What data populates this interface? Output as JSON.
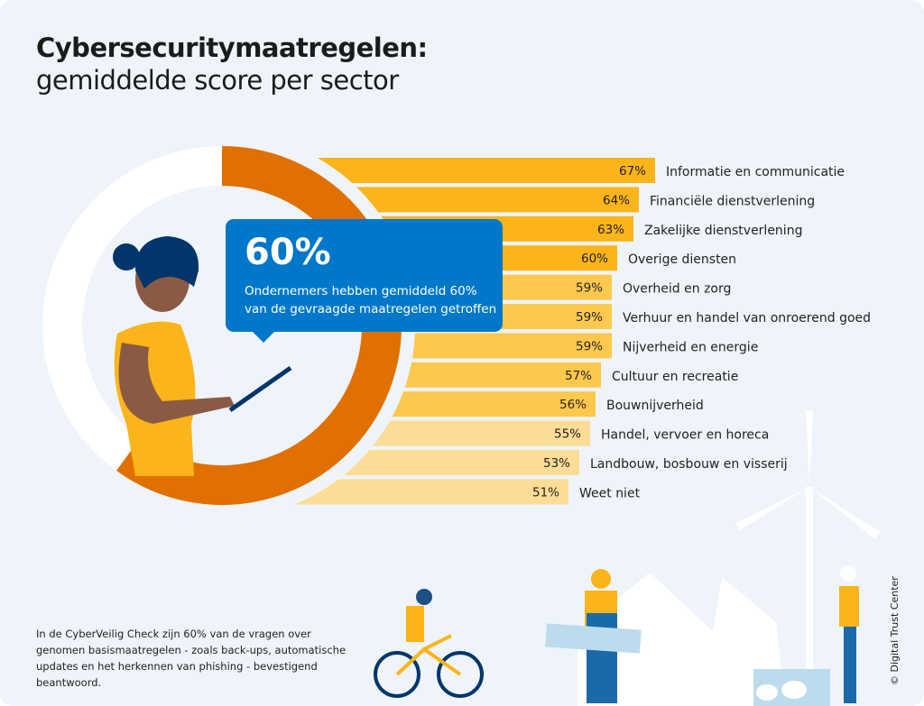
{
  "title": "Cybersecuritymaatregelen:",
  "subtitle": "gemiddelde score per sector",
  "callout": {
    "value": "60%",
    "text": "Ondernemers hebben gemiddeld 60% van de gevraagde maatregelen getroffen"
  },
  "chart_data": {
    "type": "bar",
    "orientation": "horizontal",
    "title": "Cybersecuritymaatregelen: gemiddelde score per sector",
    "categories": [
      "Informatie en communicatie",
      "Financiële dienstverlening",
      "Zakelijke dienstverlening",
      "Overige diensten",
      "Overheid en zorg",
      "Verhuur en handel van onroerend goed",
      "Nijverheid en energie",
      "Cultuur en recreatie",
      "Bouwnijverheid",
      "Handel, vervoer en horeca",
      "Landbouw, bosbouw en visserij",
      "Weet niet"
    ],
    "values": [
      67,
      64,
      63,
      60,
      59,
      59,
      59,
      57,
      56,
      55,
      53,
      51
    ],
    "value_labels": [
      "67%",
      "64%",
      "63%",
      "60%",
      "59%",
      "59%",
      "59%",
      "57%",
      "56%",
      "55%",
      "53%",
      "51%"
    ],
    "unit": "%",
    "gauge": {
      "value": 60,
      "max": 100
    },
    "colors": {
      "high": "#fbb419",
      "mid": "#fdc84e",
      "low": "#fddc95",
      "ring": "#e07000",
      "ring_rest": "#ffffff",
      "callout": "#0077c8"
    },
    "grid": false
  },
  "footnote": "In de CyberVeilig Check zijn 60% van de vragen over genomen basismaatregelen - zoals back-ups, automatische updates en het herkennen van phishing - bevestigend beantwoord.",
  "copyright": "© Digital Trust Center"
}
